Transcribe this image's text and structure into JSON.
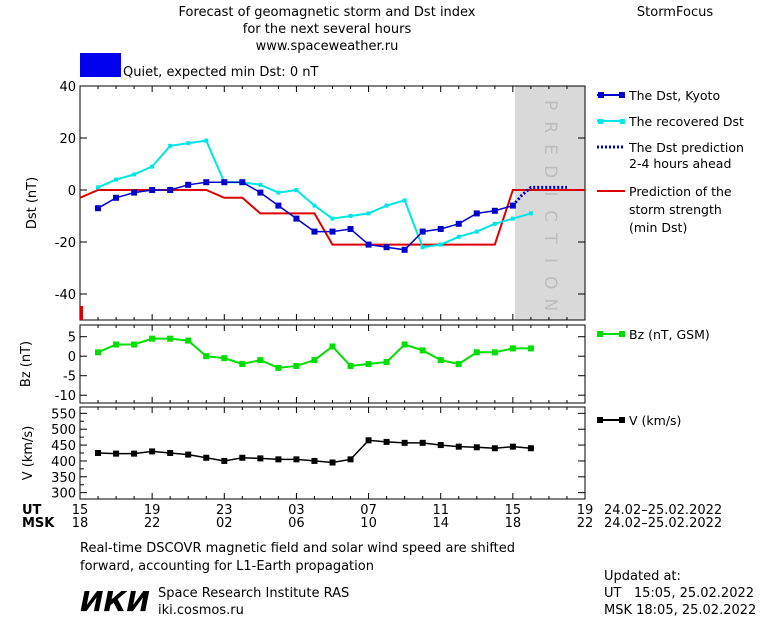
{
  "header": {
    "title_line1": "Forecast of geomagnetic storm and Dst index",
    "title_line2": "for the next several hours",
    "website": "www.spaceweather.ru",
    "brand": "StormFocus"
  },
  "status": {
    "text": "Quiet, expected min Dst: 0 nT",
    "color": "#0000ee"
  },
  "prediction_label": "PREDICTION",
  "legend": {
    "dst_kyoto": "The Dst, Kyoto",
    "dst_recovered": "The recovered Dst",
    "dst_prediction_line1": "The Dst prediction",
    "dst_prediction_line2": "2-4 hours ahead",
    "strength_line1": "Prediction of the",
    "strength_line2": "storm strength",
    "strength_line3": "(min Dst)",
    "bz": "Bz (nT, GSM)",
    "v": "V (km/s)"
  },
  "time_axis": {
    "ut_label": "UT",
    "msk_label": "MSK",
    "ut_ticks": [
      "15",
      "19",
      "23",
      "03",
      "07",
      "11",
      "15",
      "19"
    ],
    "msk_ticks": [
      "18",
      "22",
      "02",
      "06",
      "10",
      "14",
      "18",
      "22"
    ],
    "ut_range": "24.02–25.02.2022",
    "msk_range": "24.02–25.02.2022"
  },
  "footer": {
    "note_line1": "Real-time DSCOVR magnetic field and solar wind speed are shifted",
    "note_line2": "forward, accounting for L1-Earth propagation",
    "logo_text": "ИКИ",
    "institute": "Space Research Institute RAS",
    "institute_url": "iki.cosmos.ru",
    "updated_label": "Updated at:",
    "updated_ut": "UT   15:05, 25.02.2022",
    "updated_msk": "MSK 18:05, 25.02.2022"
  },
  "colors": {
    "dst_kyoto": "#0000cc",
    "dst_recovered": "#00e5e5",
    "dst_prediction": "#0000cc",
    "strength": "#dd0000",
    "bz": "#00dd00",
    "v": "#000000",
    "prediction_zone": "#d9d9d9"
  },
  "chart_data": [
    {
      "type": "line",
      "ylabel": "Dst (nT)",
      "ylim": [
        -50,
        40
      ],
      "y_ticks": [
        40,
        20,
        0,
        -20,
        -40
      ],
      "x_unit": "hours since 15 UT 24.02.2022",
      "xlim": [
        0,
        28
      ],
      "prediction_zone": [
        24,
        28
      ],
      "series": [
        {
          "name": "The Dst, Kyoto",
          "x": [
            1,
            2,
            3,
            4,
            5,
            6,
            7,
            8,
            9,
            10,
            11,
            12,
            13,
            14,
            15,
            16,
            17,
            18,
            19,
            20,
            21,
            22,
            23,
            24
          ],
          "values": [
            -7,
            -3,
            -1,
            0,
            0,
            2,
            3,
            3,
            3,
            -1,
            -6,
            -11,
            -16,
            -16,
            -15,
            -21,
            -22,
            -23,
            -16,
            -15,
            -13,
            -9,
            -8,
            -6
          ]
        },
        {
          "name": "The recovered Dst",
          "x": [
            1,
            2,
            3,
            4,
            5,
            6,
            7,
            8,
            9,
            10,
            11,
            12,
            13,
            14,
            15,
            16,
            17,
            18,
            19,
            20,
            21,
            22,
            23,
            24,
            25
          ],
          "values": [
            1,
            4,
            6,
            9,
            17,
            18,
            19,
            3,
            3,
            2,
            -1,
            0,
            -6,
            -11,
            -10,
            -9,
            -6,
            -4,
            -22,
            -21,
            -18,
            -16,
            -13,
            -11,
            -9
          ]
        },
        {
          "name": "The Dst prediction",
          "x": [
            24,
            24.5,
            25,
            25.5,
            26,
            26.5,
            27
          ],
          "values": [
            -6,
            -2,
            1,
            1,
            1,
            1,
            1
          ]
        },
        {
          "name": "Prediction of the storm strength",
          "step": true,
          "x": [
            0,
            1,
            7,
            8,
            9,
            10,
            12,
            13,
            14,
            19,
            20,
            23,
            24,
            28
          ],
          "values": [
            -3,
            0,
            0,
            -3,
            -3,
            -9,
            -9,
            -9,
            -21,
            -21,
            -21,
            -21,
            0,
            0
          ]
        }
      ]
    },
    {
      "type": "line",
      "ylabel": "Bz (nT)",
      "ylim": [
        -12,
        8
      ],
      "y_ticks": [
        5,
        0,
        -5,
        -10
      ],
      "xlim": [
        0,
        28
      ],
      "series": [
        {
          "name": "Bz (nT, GSM)",
          "x": [
            1,
            2,
            3,
            4,
            5,
            6,
            7,
            8,
            9,
            10,
            11,
            12,
            13,
            14,
            15,
            16,
            17,
            18,
            19,
            20,
            21,
            22,
            23,
            24,
            25
          ],
          "values": [
            1,
            3,
            3,
            4.5,
            4.5,
            4,
            0,
            -0.5,
            -2,
            -1,
            -3,
            -2.5,
            -1,
            2.5,
            -2.5,
            -2,
            -1.5,
            3,
            1.5,
            -1,
            -2,
            1,
            1,
            2,
            2
          ]
        }
      ]
    },
    {
      "type": "line",
      "ylabel": "V (km/s)",
      "ylim": [
        280,
        570
      ],
      "y_ticks": [
        550,
        500,
        450,
        400,
        350,
        300
      ],
      "y_minor_ticks": [
        525,
        475,
        425,
        375,
        325
      ],
      "xlim": [
        0,
        28
      ],
      "series": [
        {
          "name": "V (km/s)",
          "x": [
            1,
            2,
            3,
            4,
            5,
            6,
            7,
            8,
            9,
            10,
            11,
            12,
            13,
            14,
            15,
            16,
            17,
            18,
            19,
            20,
            21,
            22,
            23,
            24,
            25
          ],
          "values": [
            425,
            423,
            423,
            430,
            425,
            420,
            410,
            400,
            410,
            408,
            405,
            405,
            400,
            395,
            405,
            465,
            460,
            457,
            457,
            450,
            445,
            443,
            440,
            445,
            440
          ]
        }
      ]
    }
  ]
}
